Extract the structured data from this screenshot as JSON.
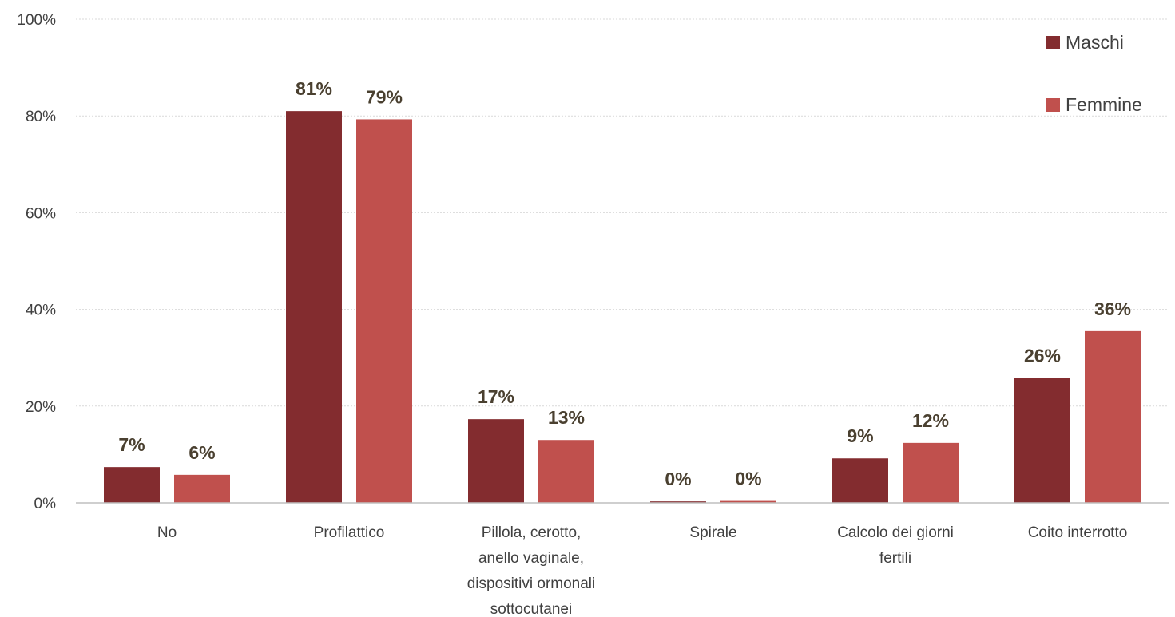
{
  "chart_data": {
    "type": "bar",
    "title": "",
    "xlabel": "",
    "ylabel": "",
    "ylim": [
      0,
      100
    ],
    "y_ticks": [
      "0%",
      "20%",
      "40%",
      "60%",
      "80%",
      "100%"
    ],
    "y_tick_values": [
      0,
      20,
      40,
      60,
      80,
      100
    ],
    "grid": true,
    "legend_position": "top-right",
    "categories": [
      [
        "No"
      ],
      [
        "Profilattico"
      ],
      [
        "Pillola, cerotto,",
        "anello vaginale,",
        "dispositivi ormonali",
        "sottocutanei"
      ],
      [
        "Spirale"
      ],
      [
        "Calcolo dei giorni",
        "fertili"
      ],
      [
        "Coito interrotto"
      ]
    ],
    "series": [
      {
        "name": "Maschi",
        "color": "#832c2f",
        "values": [
          7.4,
          81.0,
          17.3,
          0.3,
          9.2,
          25.8
        ],
        "labels": [
          "7%",
          "81%",
          "17%",
          "0%",
          "9%",
          "26%"
        ]
      },
      {
        "name": "Femmine",
        "color": "#c0504d",
        "values": [
          5.8,
          79.3,
          13.0,
          0.4,
          12.4,
          35.5
        ],
        "labels": [
          "6%",
          "79%",
          "13%",
          "0%",
          "12%",
          "36%"
        ]
      }
    ]
  }
}
